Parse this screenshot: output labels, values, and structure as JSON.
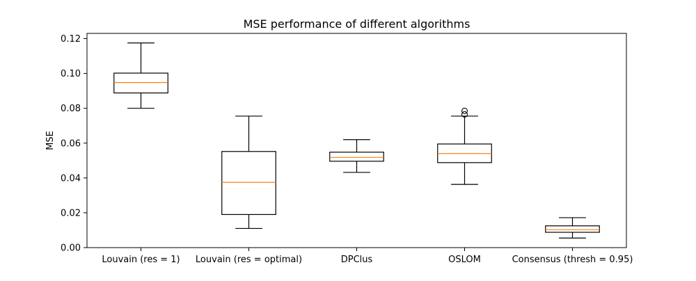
{
  "chart_data": {
    "type": "boxplot",
    "title": "MSE performance of different algorithms",
    "xlabel": "",
    "ylabel": "MSE",
    "ylim": [
      0.0,
      0.123
    ],
    "yticks": [
      0.0,
      0.02,
      0.04,
      0.06,
      0.08,
      0.1,
      0.12
    ],
    "ytick_labels": [
      "0.00",
      "0.02",
      "0.04",
      "0.06",
      "0.08",
      "0.10",
      "0.12"
    ],
    "categories": [
      "Louvain (res = 1)",
      "Louvain (res = optimal)",
      "DPClus",
      "OSLOM",
      "Consensus (thresh = 0.95)"
    ],
    "boxes": [
      {
        "whisker_low": 0.08,
        "q1": 0.0888,
        "median": 0.0948,
        "q3": 0.1002,
        "whisker_high": 0.1175,
        "outliers": []
      },
      {
        "whisker_low": 0.011,
        "q1": 0.019,
        "median": 0.0375,
        "q3": 0.0552,
        "whisker_high": 0.0755,
        "outliers": []
      },
      {
        "whisker_low": 0.0432,
        "q1": 0.0496,
        "median": 0.0518,
        "q3": 0.0548,
        "whisker_high": 0.062,
        "outliers": []
      },
      {
        "whisker_low": 0.0363,
        "q1": 0.0488,
        "median": 0.054,
        "q3": 0.0595,
        "whisker_high": 0.0755,
        "outliers": [
          0.0765,
          0.0785
        ]
      },
      {
        "whisker_low": 0.0055,
        "q1": 0.0088,
        "median": 0.0103,
        "q3": 0.0125,
        "whisker_high": 0.0172,
        "outliers": []
      }
    ],
    "colors": {
      "box": "#000000",
      "median": "#ff7f0e",
      "whisker": "#000000",
      "flier": "#000000",
      "axes": "#000000",
      "background": "#ffffff"
    },
    "grid": false,
    "legend": "none"
  }
}
